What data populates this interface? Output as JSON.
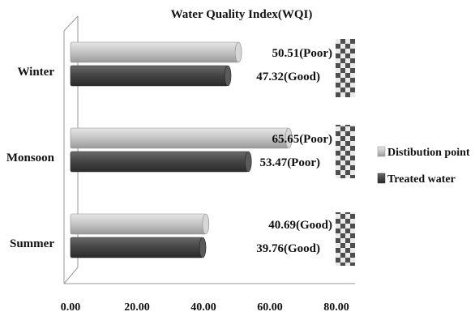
{
  "chart_data": {
    "type": "bar",
    "orientation": "horizontal",
    "title": "Water Quality Index(WQI)",
    "xlabel": "",
    "ylabel": "",
    "categories": [
      "Winter",
      "Monsoon",
      "Summer"
    ],
    "series": [
      {
        "name": "Distibution point",
        "color": "#c8c8c8",
        "values": [
          50.51,
          65.65,
          40.69
        ],
        "labels": [
          "50.51(Poor)",
          "65.65(Poor)",
          "40.69(Good)"
        ]
      },
      {
        "name": "Treated water",
        "color": "#4a4a4a",
        "values": [
          47.32,
          53.47,
          39.76
        ],
        "labels": [
          "47.32(Good)",
          "53.47(Poor)",
          "39.76(Good)"
        ]
      }
    ],
    "xlim": [
      0,
      80
    ],
    "xticks": [
      "0.00",
      "20.00",
      "40.00",
      "60.00",
      "80.00"
    ],
    "legend": "right",
    "grid": false
  }
}
